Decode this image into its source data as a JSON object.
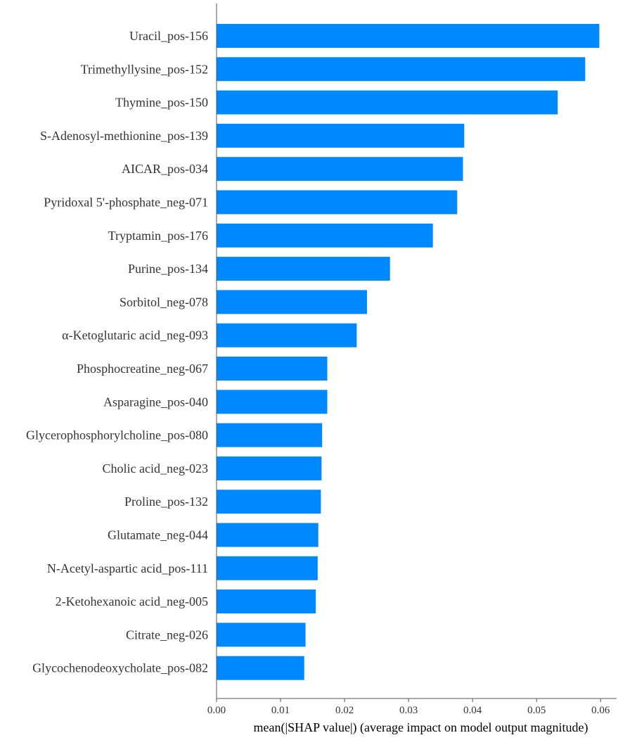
{
  "chart_data": {
    "type": "bar",
    "orientation": "horizontal",
    "categories": [
      "Uracil_pos-156",
      "Trimethyllysine_pos-152",
      "Thymine_pos-150",
      "S-Adenosyl-methionine_pos-139",
      "AICAR_pos-034",
      "Pyridoxal 5'-phosphate_neg-071",
      "Tryptamin_pos-176",
      "Purine_pos-134",
      "Sorbitol_neg-078",
      "α-Ketoglutaric acid_neg-093",
      "Phosphocreatine_neg-067",
      "Asparagine_pos-040",
      "Glycerophosphorylcholine_pos-080",
      "Cholic acid_neg-023",
      "Proline_pos-132",
      "Glutamate_neg-044",
      "N-Acetyl-aspartic acid_pos-111",
      "2-Ketohexanoic acid_neg-005",
      "Citrate_neg-026",
      "Glycochenodeoxycholate_pos-082"
    ],
    "values": [
      0.0598,
      0.0576,
      0.0533,
      0.0387,
      0.0385,
      0.0376,
      0.0338,
      0.0271,
      0.0235,
      0.0219,
      0.0173,
      0.0173,
      0.0165,
      0.0164,
      0.0163,
      0.0159,
      0.0158,
      0.0155,
      0.0139,
      0.0137
    ],
    "xlabel": "mean(|SHAP value|) (average impact on model output magnitude)",
    "xlim": [
      0,
      0.0625
    ],
    "xticks": [
      0.0,
      0.01,
      0.02,
      0.03,
      0.04,
      0.05,
      0.06
    ],
    "xtick_labels": [
      "0.00",
      "0.01",
      "0.02",
      "0.03",
      "0.04",
      "0.05",
      "0.06"
    ],
    "grid": false,
    "bar_color": "#0088ff",
    "axis_color": "#555555"
  }
}
